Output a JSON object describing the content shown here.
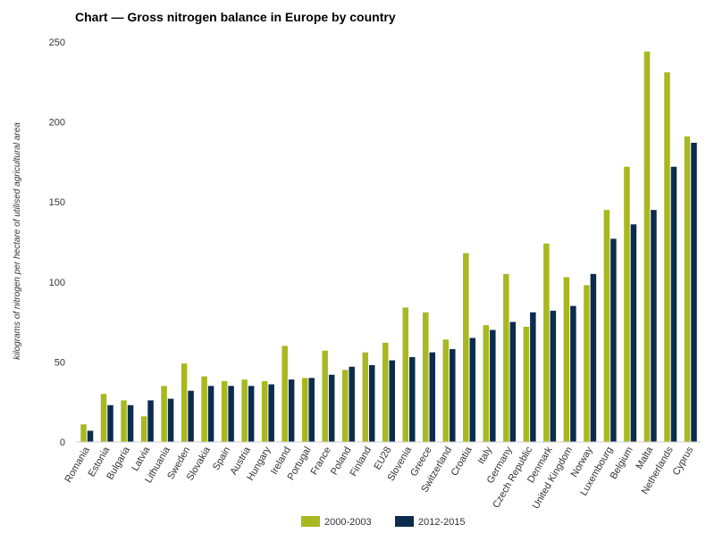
{
  "chart_data": {
    "type": "bar",
    "title": "Chart — Gross nitrogen balance in Europe by country",
    "xlabel": "",
    "ylabel": "kilograms of nitrogen per hectare of utilised agricultural area",
    "ylim": [
      0,
      250
    ],
    "yticks": [
      0,
      50,
      100,
      150,
      200,
      250
    ],
    "categories": [
      "Romania",
      "Estonia",
      "Bulgaria",
      "Latvia",
      "Lithuania",
      "Sweden",
      "Slovakia",
      "Spain",
      "Austria",
      "Hungary",
      "Ireland",
      "Portugal",
      "France",
      "Poland",
      "Finland",
      "EU28",
      "Slovenia",
      "Greece",
      "Switzerland",
      "Croatia",
      "Italy",
      "Germany",
      "Czech Republic",
      "Denmark",
      "United Kingdom",
      "Norway",
      "Luxembourg",
      "Belgium",
      "Malta",
      "Netherlands",
      "Cyprus"
    ],
    "series": [
      {
        "name": "2000-2003",
        "color": "#a8b820",
        "values": [
          11,
          30,
          26,
          16,
          35,
          49,
          41,
          38,
          39,
          38,
          60,
          40,
          57,
          45,
          56,
          62,
          84,
          81,
          64,
          118,
          73,
          105,
          72,
          124,
          103,
          98,
          145,
          172,
          244,
          231,
          191
        ]
      },
      {
        "name": "2012-2015",
        "color": "#0c2c4e",
        "values": [
          7,
          23,
          23,
          26,
          27,
          32,
          35,
          35,
          35,
          36,
          39,
          40,
          42,
          47,
          48,
          51,
          53,
          56,
          58,
          65,
          70,
          75,
          81,
          82,
          85,
          105,
          127,
          136,
          145,
          172,
          187
        ]
      }
    ],
    "legend_position": "bottom-center",
    "grid": false
  }
}
